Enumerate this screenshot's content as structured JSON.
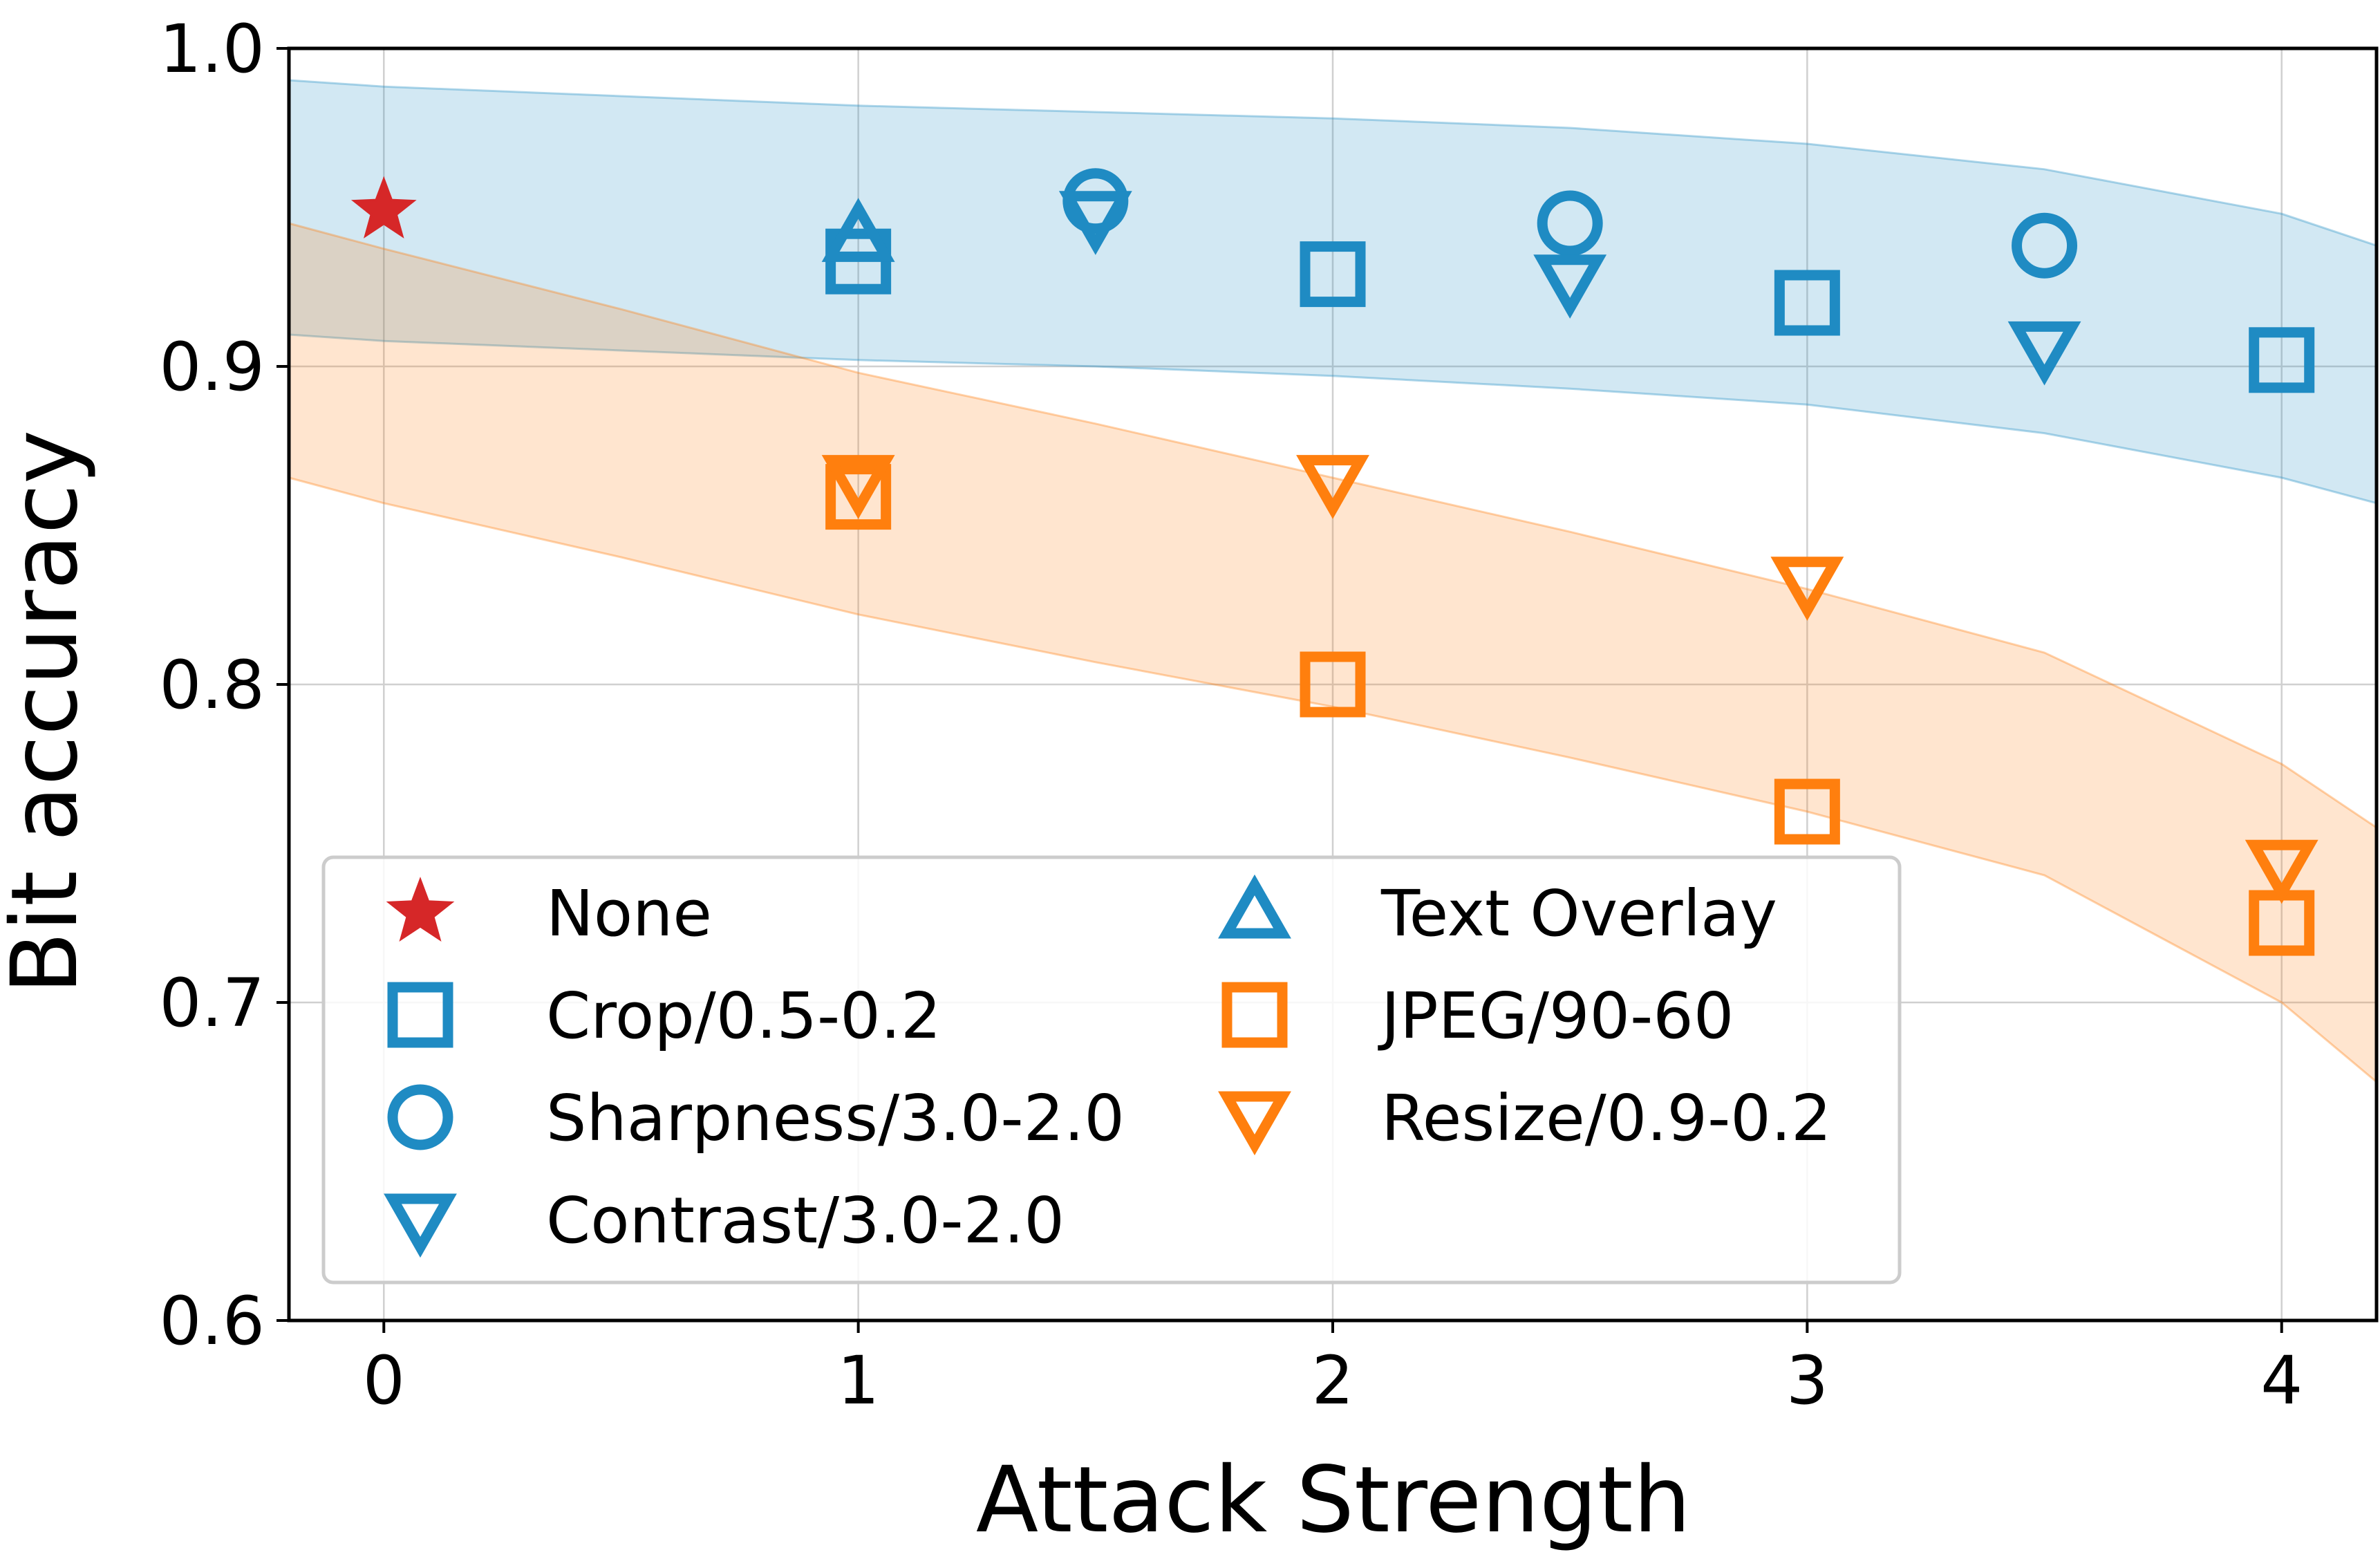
{
  "chart_data": {
    "type": "scatter",
    "title": "",
    "xlabel": "Attack Strength",
    "ylabel": "Bit accuracy",
    "xlim": [
      -0.2,
      4.2
    ],
    "ylim": [
      0.6,
      1.0
    ],
    "xticks": [
      "0",
      "1",
      "2",
      "3",
      "4"
    ],
    "yticks": [
      "0.6",
      "0.7",
      "0.8",
      "0.9",
      "1.0"
    ],
    "grid": true,
    "legend_position": "lower-left",
    "colors": {
      "blue": "#1f8bc3",
      "orange": "#ff7f0e",
      "red": "#d62728"
    },
    "bands": [
      {
        "name": "blue-band",
        "color": "#1f8bc3",
        "x": [
          -0.2,
          0,
          0.5,
          1,
          1.5,
          2,
          2.5,
          3,
          3.5,
          4,
          4.2
        ],
        "upper": [
          0.99,
          0.988,
          0.985,
          0.982,
          0.98,
          0.978,
          0.975,
          0.97,
          0.962,
          0.948,
          0.938
        ],
        "lower": [
          0.91,
          0.908,
          0.905,
          0.902,
          0.9,
          0.897,
          0.893,
          0.888,
          0.879,
          0.865,
          0.857
        ]
      },
      {
        "name": "orange-band",
        "color": "#ff7f0e",
        "x": [
          -0.2,
          0,
          0.5,
          1,
          1.5,
          2,
          2.5,
          3,
          3.5,
          4,
          4.2
        ],
        "upper": [
          0.945,
          0.937,
          0.918,
          0.898,
          0.882,
          0.865,
          0.848,
          0.83,
          0.81,
          0.775,
          0.755
        ],
        "lower": [
          0.865,
          0.857,
          0.84,
          0.822,
          0.807,
          0.793,
          0.777,
          0.76,
          0.74,
          0.7,
          0.675
        ]
      }
    ],
    "series": [
      {
        "name": "None",
        "marker": "star",
        "color": "#d62728",
        "points": [
          {
            "x": 0,
            "y": 0.949
          }
        ]
      },
      {
        "name": "Crop/0.5-0.2",
        "marker": "square",
        "color": "#1f8bc3",
        "points": [
          {
            "x": 1,
            "y": 0.933
          },
          {
            "x": 2,
            "y": 0.929
          },
          {
            "x": 3,
            "y": 0.92
          },
          {
            "x": 4,
            "y": 0.902
          }
        ]
      },
      {
        "name": "Sharpness/3.0-2.0",
        "marker": "circle",
        "color": "#1f8bc3",
        "points": [
          {
            "x": 1.5,
            "y": 0.952
          },
          {
            "x": 2.5,
            "y": 0.945
          },
          {
            "x": 3.5,
            "y": 0.938
          }
        ]
      },
      {
        "name": "Contrast/3.0-2.0",
        "marker": "triangle-down",
        "color": "#1f8bc3",
        "points": [
          {
            "x": 1.5,
            "y": 0.947
          },
          {
            "x": 2.5,
            "y": 0.927
          },
          {
            "x": 3.5,
            "y": 0.906
          }
        ]
      },
      {
        "name": "Text Overlay",
        "marker": "triangle-up",
        "color": "#1f8bc3",
        "points": [
          {
            "x": 1,
            "y": 0.941
          }
        ]
      },
      {
        "name": "JPEG/90-60",
        "marker": "square",
        "color": "#ff7f0e",
        "points": [
          {
            "x": 1,
            "y": 0.859
          },
          {
            "x": 2,
            "y": 0.8
          },
          {
            "x": 3,
            "y": 0.76
          },
          {
            "x": 4,
            "y": 0.725
          }
        ]
      },
      {
        "name": "Resize/0.9-0.2",
        "marker": "triangle-down",
        "color": "#ff7f0e",
        "points": [
          {
            "x": 1,
            "y": 0.864
          },
          {
            "x": 2,
            "y": 0.864
          },
          {
            "x": 3,
            "y": 0.832
          },
          {
            "x": 4,
            "y": 0.743
          }
        ]
      }
    ],
    "legend": [
      {
        "label": "None",
        "marker": "star",
        "color": "#d62728"
      },
      {
        "label": "Crop/0.5-0.2",
        "marker": "square",
        "color": "#1f8bc3"
      },
      {
        "label": "Sharpness/3.0-2.0",
        "marker": "circle",
        "color": "#1f8bc3"
      },
      {
        "label": "Contrast/3.0-2.0",
        "marker": "triangle-down",
        "color": "#1f8bc3"
      },
      {
        "label": "Text Overlay",
        "marker": "triangle-up",
        "color": "#1f8bc3"
      },
      {
        "label": "JPEG/90-60",
        "marker": "square",
        "color": "#ff7f0e"
      },
      {
        "label": "Resize/0.9-0.2",
        "marker": "triangle-down",
        "color": "#ff7f0e"
      }
    ]
  }
}
